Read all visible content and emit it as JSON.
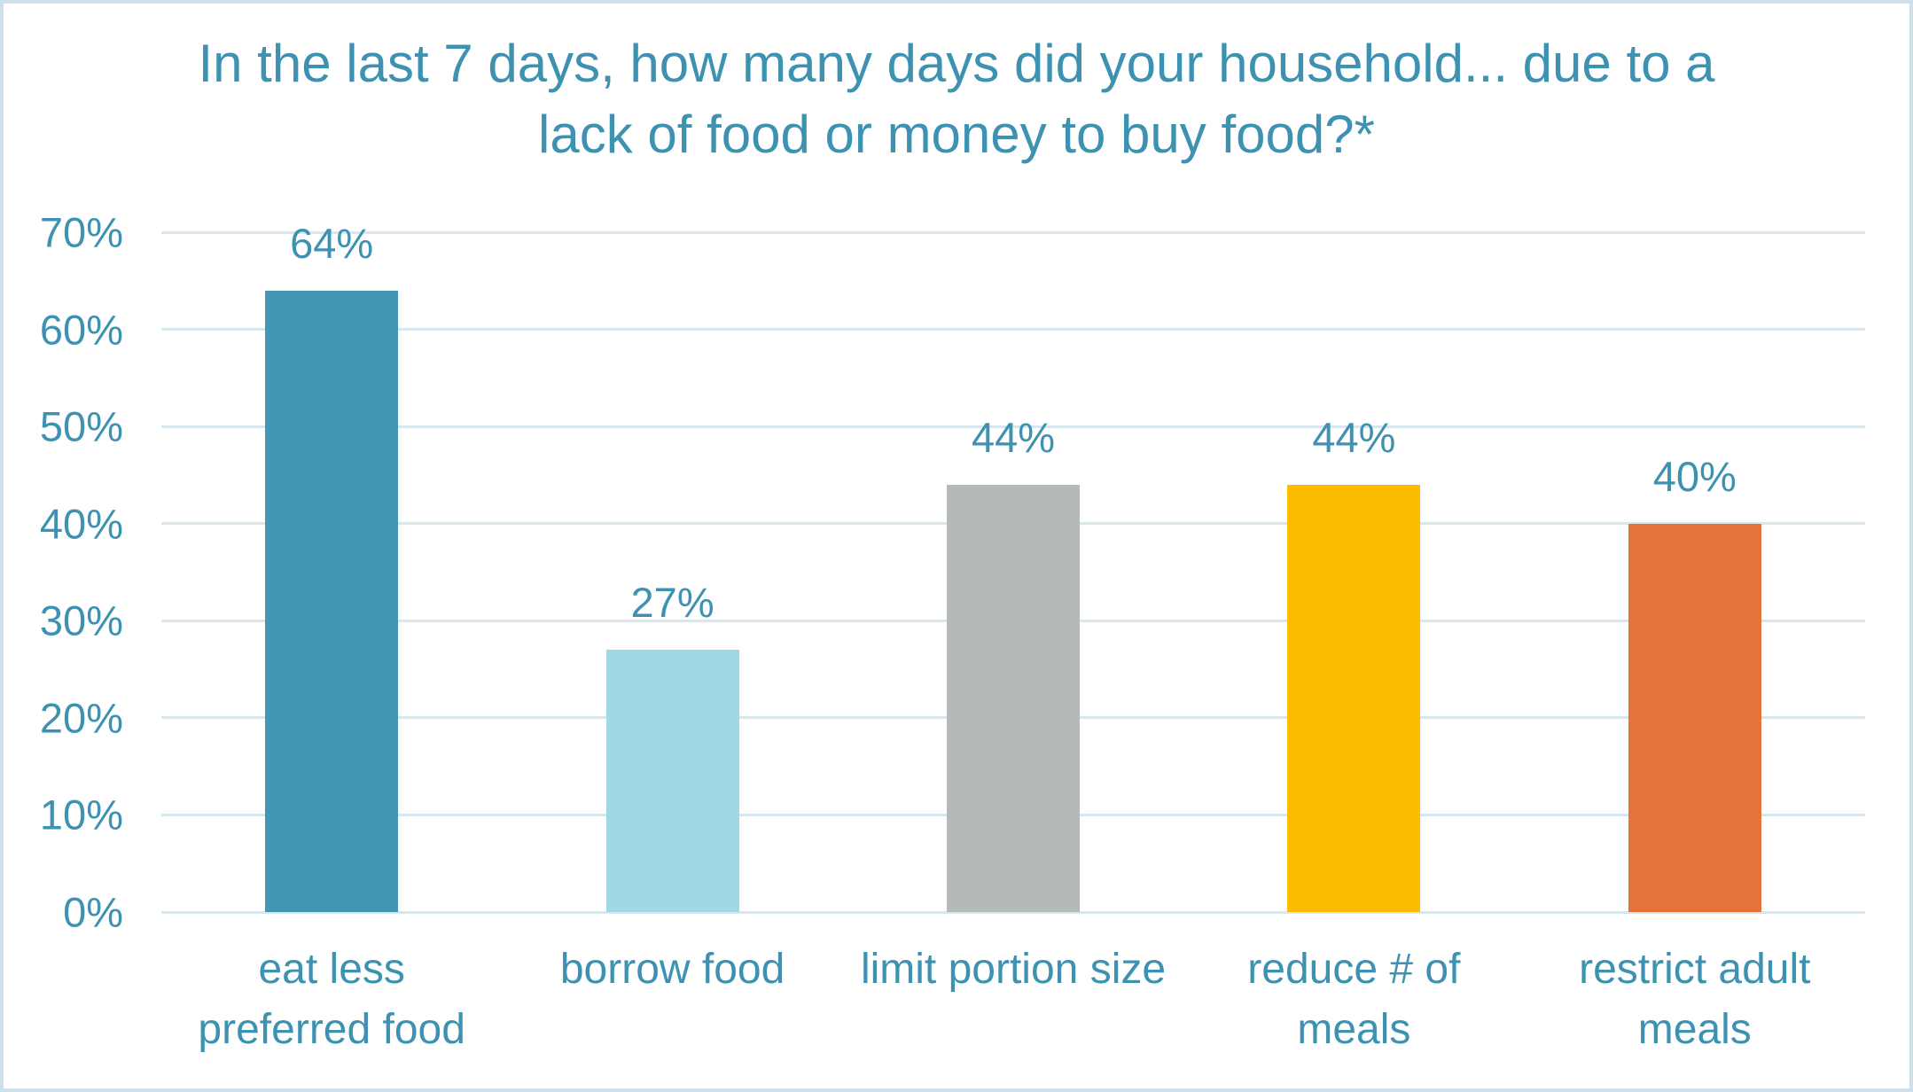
{
  "chart_data": {
    "type": "bar",
    "title": "In the last 7 days, how many days did your household... due to a\nlack of food or money to buy food?*",
    "categories": [
      "eat less\npreferred food",
      "borrow food",
      "limit portion size",
      "reduce # of\nmeals",
      "restrict adult\nmeals"
    ],
    "values": [
      64,
      27,
      44,
      44,
      40
    ],
    "value_labels": [
      "64%",
      "27%",
      "44%",
      "44%",
      "40%"
    ],
    "bar_colors": [
      "#4497b4",
      "#a0d8e4",
      "#b4bab7",
      "#febc00",
      "#e4733a"
    ],
    "yticks": [
      0,
      10,
      20,
      30,
      40,
      50,
      60,
      70
    ],
    "ytick_labels": [
      "0%",
      "10%",
      "20%",
      "30%",
      "40%",
      "50%",
      "60%",
      "70%"
    ],
    "ylim": [
      0,
      70
    ],
    "xlabel": "",
    "ylabel": "",
    "grid": true,
    "legend": "none"
  },
  "colors": {
    "title_text": "#3e92b1",
    "axis_text": "#3e92b1",
    "data_label_text": "#3e92b1",
    "gridline": "#d8e7ee",
    "frame_border": "#cfe0ea",
    "background": "#ffffff"
  }
}
